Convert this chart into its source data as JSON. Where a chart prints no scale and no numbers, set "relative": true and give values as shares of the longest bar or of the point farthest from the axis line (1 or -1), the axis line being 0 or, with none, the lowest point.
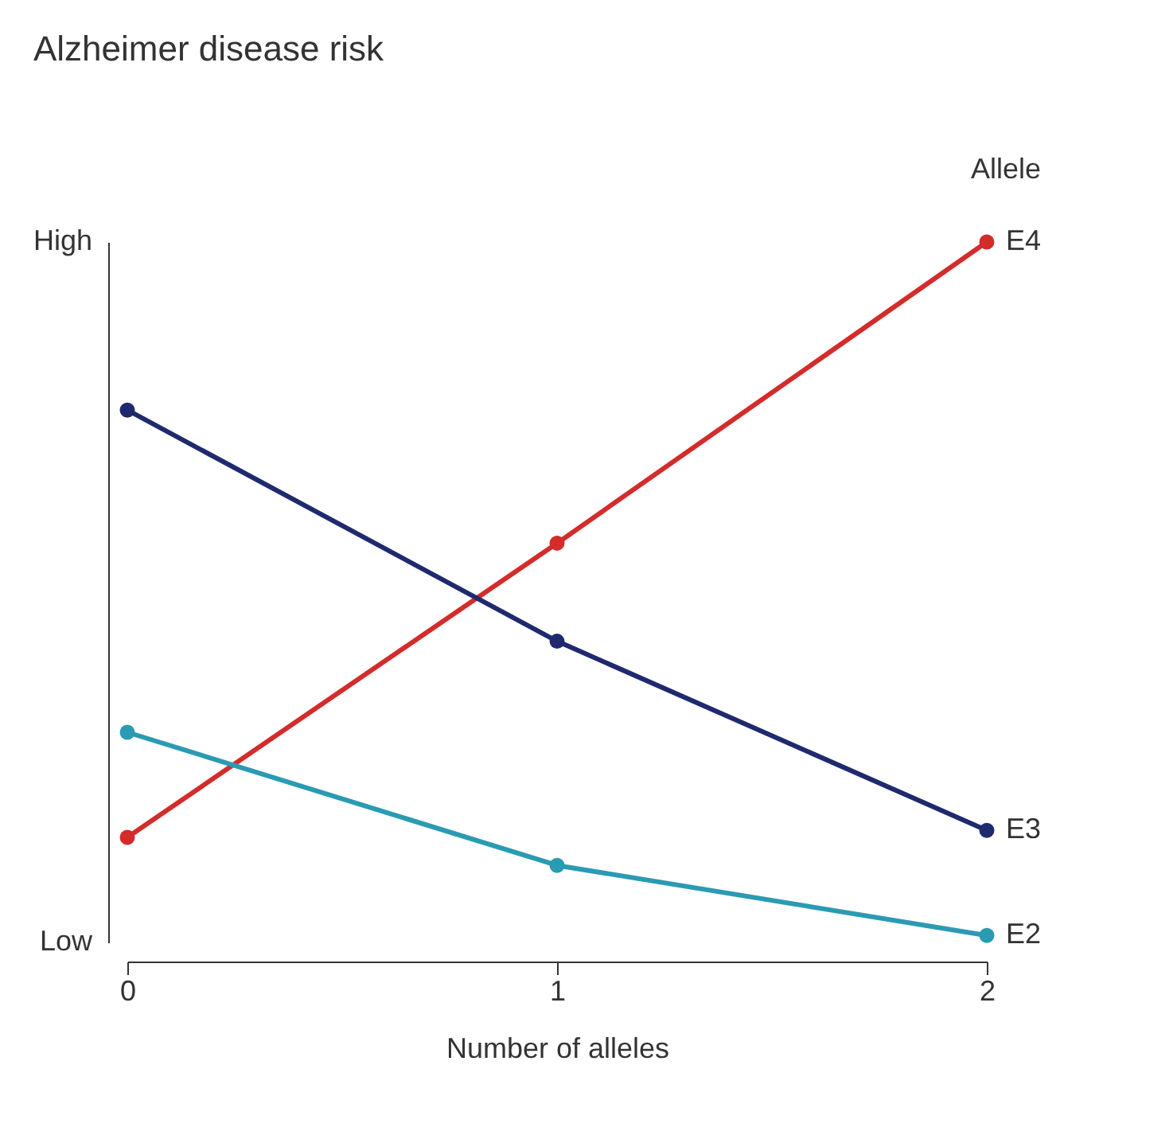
{
  "chart_data": {
    "type": "line",
    "title": "Alzheimer disease risk",
    "xlabel": "Number of alleles",
    "legend_title": "Allele",
    "x": [
      0,
      1,
      2
    ],
    "xlim": [
      0,
      2
    ],
    "xticks": [
      0,
      1,
      2
    ],
    "relative": true,
    "annotations": [
      "Low",
      "High"
    ],
    "grid": false,
    "marker": "circle",
    "line_style": "solid",
    "series": [
      {
        "name": "E4",
        "color": "#d42b2b",
        "values": [
          0.15,
          0.57,
          1
        ]
      },
      {
        "name": "E3",
        "color": "#1f2a6e",
        "values": [
          0.76,
          0.43,
          0.16
        ]
      },
      {
        "name": "E2",
        "color": "#2b9ab3",
        "values": [
          0.3,
          0.11,
          0.01
        ]
      }
    ]
  }
}
